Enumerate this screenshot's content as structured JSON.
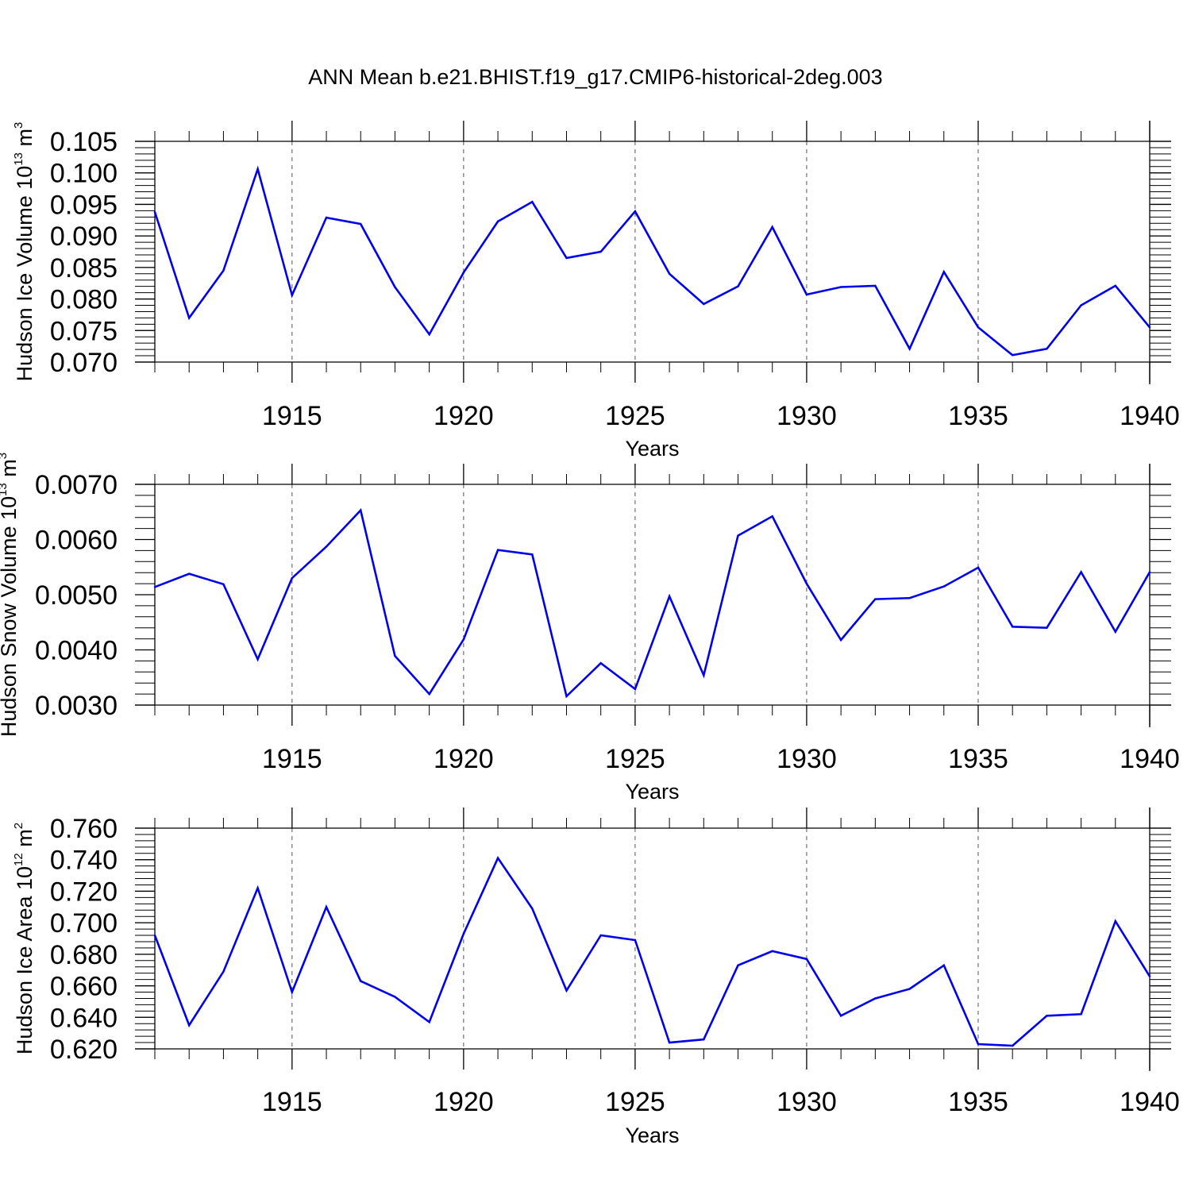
{
  "figure": {
    "title": "ANN Mean b.e21.BHIST.f19_g17.CMIP6-historical-2deg.003",
    "line_color": "#0000ee"
  },
  "chart_data": [
    {
      "type": "line",
      "xlabel": "Years",
      "ylabel_main": "Hudson Ice Volume 10",
      "ylabel_exp": "13",
      "ylabel_unit": " m",
      "ylabel_unit_exp": "3",
      "xlim": [
        1911,
        1940
      ],
      "ylim": [
        0.07,
        0.105
      ],
      "yticks": [
        0.07,
        0.075,
        0.08,
        0.085,
        0.09,
        0.095,
        0.1,
        0.105
      ],
      "ytick_labels": [
        "0.070",
        "0.075",
        "0.080",
        "0.085",
        "0.090",
        "0.095",
        "0.100",
        "0.105"
      ],
      "yminor_step": 0.001,
      "xticks": [
        1915,
        1920,
        1925,
        1930,
        1935,
        1940
      ],
      "xtick_labels": [
        "1915",
        "1920",
        "1925",
        "1930",
        "1935",
        "1940"
      ],
      "grid": "dashed vertical at major x ticks",
      "x": [
        1911,
        1912,
        1913,
        1914,
        1915,
        1916,
        1917,
        1918,
        1919,
        1920,
        1921,
        1922,
        1923,
        1924,
        1925,
        1926,
        1927,
        1928,
        1929,
        1930,
        1931,
        1932,
        1933,
        1934,
        1935,
        1936,
        1937,
        1938,
        1939,
        1940
      ],
      "values": [
        0.0938,
        0.077,
        0.0845,
        0.1006,
        0.0806,
        0.0929,
        0.0919,
        0.0819,
        0.0744,
        0.0842,
        0.0923,
        0.0954,
        0.0865,
        0.0875,
        0.0939,
        0.084,
        0.0792,
        0.082,
        0.0914,
        0.0807,
        0.0819,
        0.0821,
        0.0721,
        0.0843,
        0.0755,
        0.0711,
        0.0721,
        0.079,
        0.0821,
        0.0755
      ]
    },
    {
      "type": "line",
      "xlabel": "Years",
      "ylabel_main": "Hudson Snow Volume 10",
      "ylabel_exp": "13",
      "ylabel_unit": " m",
      "ylabel_unit_exp": "3",
      "xlim": [
        1911,
        1940
      ],
      "ylim": [
        0.003,
        0.007
      ],
      "yticks": [
        0.003,
        0.004,
        0.005,
        0.006,
        0.007
      ],
      "ytick_labels": [
        "0.0030",
        "0.0040",
        "0.0050",
        "0.0060",
        "0.0070"
      ],
      "yminor_step": 0.0002,
      "xticks": [
        1915,
        1920,
        1925,
        1930,
        1935,
        1940
      ],
      "xtick_labels": [
        "1915",
        "1920",
        "1925",
        "1930",
        "1935",
        "1940"
      ],
      "grid": "dashed vertical at major x ticks",
      "x": [
        1911,
        1912,
        1913,
        1914,
        1915,
        1916,
        1917,
        1918,
        1919,
        1920,
        1921,
        1922,
        1923,
        1924,
        1925,
        1926,
        1927,
        1928,
        1929,
        1930,
        1931,
        1932,
        1933,
        1934,
        1935,
        1936,
        1937,
        1938,
        1939,
        1940
      ],
      "values": [
        0.00514,
        0.00538,
        0.00519,
        0.00383,
        0.0053,
        0.00587,
        0.00653,
        0.00389,
        0.0032,
        0.00419,
        0.00581,
        0.00573,
        0.00316,
        0.00376,
        0.00329,
        0.00497,
        0.00354,
        0.00607,
        0.00642,
        0.0052,
        0.00418,
        0.00492,
        0.00494,
        0.00515,
        0.00549,
        0.00442,
        0.0044,
        0.00541,
        0.00433,
        0.00541
      ]
    },
    {
      "type": "line",
      "xlabel": "Years",
      "ylabel_main": "Hudson Ice Area 10",
      "ylabel_exp": "12",
      "ylabel_unit": " m",
      "ylabel_unit_exp": "2",
      "xlim": [
        1911,
        1940
      ],
      "ylim": [
        0.62,
        0.76
      ],
      "yticks": [
        0.62,
        0.64,
        0.66,
        0.68,
        0.7,
        0.72,
        0.74,
        0.76
      ],
      "ytick_labels": [
        "0.620",
        "0.640",
        "0.660",
        "0.680",
        "0.700",
        "0.720",
        "0.740",
        "0.760"
      ],
      "yminor_step": 0.004,
      "xticks": [
        1915,
        1920,
        1925,
        1930,
        1935,
        1940
      ],
      "xtick_labels": [
        "1915",
        "1920",
        "1925",
        "1930",
        "1935",
        "1940"
      ],
      "grid": "dashed vertical at major x ticks",
      "x": [
        1911,
        1912,
        1913,
        1914,
        1915,
        1916,
        1917,
        1918,
        1919,
        1920,
        1921,
        1922,
        1923,
        1924,
        1925,
        1926,
        1927,
        1928,
        1929,
        1930,
        1931,
        1932,
        1933,
        1934,
        1935,
        1936,
        1937,
        1938,
        1939,
        1940
      ],
      "values": [
        0.692,
        0.635,
        0.669,
        0.722,
        0.656,
        0.71,
        0.663,
        0.653,
        0.637,
        0.693,
        0.741,
        0.709,
        0.657,
        0.692,
        0.689,
        0.624,
        0.626,
        0.673,
        0.682,
        0.677,
        0.641,
        0.652,
        0.658,
        0.673,
        0.623,
        0.622,
        0.641,
        0.642,
        0.701,
        0.666
      ]
    }
  ]
}
